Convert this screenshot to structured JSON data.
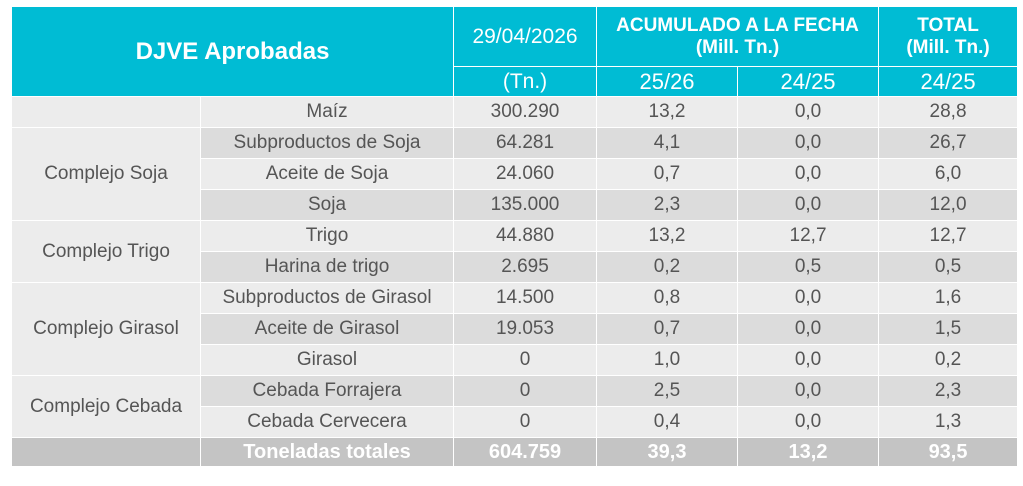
{
  "header": {
    "title": "DJVE Aprobadas",
    "date_col": "29/04/2026",
    "date_unit": "(Tn.)",
    "acum_title": "ACUMULADO A LA FECHA",
    "acum_unit": "(Mill. Tn.)",
    "acum_col1": "25/26",
    "acum_col2": "24/25",
    "total_title": "TOTAL",
    "total_unit": "(Mill. Tn.)",
    "total_col": "24/25"
  },
  "groups": [
    {
      "name": "",
      "rows": [
        {
          "product": "Maíz",
          "tn": "300.290",
          "c1": "13,2",
          "c2": "0,0",
          "tot": "28,8"
        }
      ]
    },
    {
      "name": "Complejo Soja",
      "rows": [
        {
          "product": "Subproductos de Soja",
          "tn": "64.281",
          "c1": "4,1",
          "c2": "0,0",
          "tot": "26,7"
        },
        {
          "product": "Aceite de Soja",
          "tn": "24.060",
          "c1": "0,7",
          "c2": "0,0",
          "tot": "6,0"
        },
        {
          "product": "Soja",
          "tn": "135.000",
          "c1": "2,3",
          "c2": "0,0",
          "tot": "12,0"
        }
      ]
    },
    {
      "name": "Complejo Trigo",
      "rows": [
        {
          "product": "Trigo",
          "tn": "44.880",
          "c1": "13,2",
          "c2": "12,7",
          "tot": "12,7"
        },
        {
          "product": "Harina de trigo",
          "tn": "2.695",
          "c1": "0,2",
          "c2": "0,5",
          "tot": "0,5"
        }
      ]
    },
    {
      "name": "Complejo Girasol",
      "rows": [
        {
          "product": "Subproductos de Girasol",
          "tn": "14.500",
          "c1": "0,8",
          "c2": "0,0",
          "tot": "1,6"
        },
        {
          "product": "Aceite de Girasol",
          "tn": "19.053",
          "c1": "0,7",
          "c2": "0,0",
          "tot": "1,5"
        },
        {
          "product": "Girasol",
          "tn": "0",
          "c1": "1,0",
          "c2": "0,0",
          "tot": "0,2"
        }
      ]
    },
    {
      "name": "Complejo Cebada",
      "rows": [
        {
          "product": "Cebada Forrajera",
          "tn": "0",
          "c1": "2,5",
          "c2": "0,0",
          "tot": "2,3"
        },
        {
          "product": "Cebada Cervecera",
          "tn": "0",
          "c1": "0,4",
          "c2": "0,0",
          "tot": "1,3"
        }
      ]
    }
  ],
  "total": {
    "label": "Toneladas totales",
    "tn": "604.759",
    "c1": "39,3",
    "c2": "13,2",
    "tot": "93,5"
  },
  "colors": {
    "header": "#00bcd4",
    "row_light": "#ececec",
    "row_dark": "#dcdcdc",
    "total_row": "#c4c4c4"
  }
}
